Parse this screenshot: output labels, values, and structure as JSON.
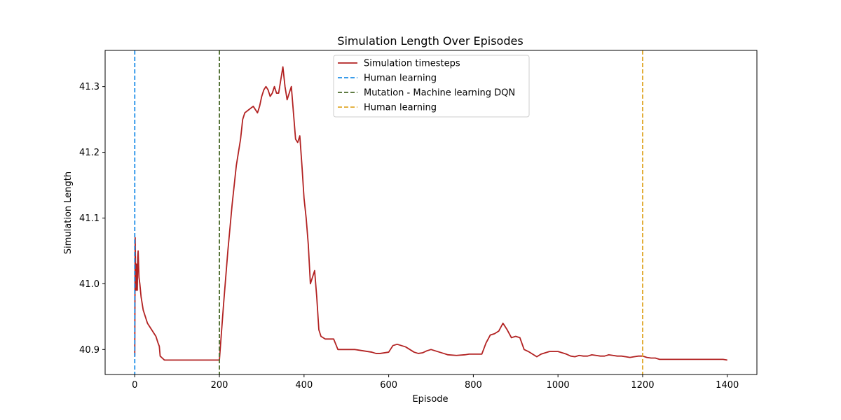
{
  "chart_data": {
    "type": "line",
    "title": "Simulation Length Over Episodes",
    "xlabel": "Episode",
    "ylabel": "Simulation Length",
    "xlim": [
      -70,
      1470
    ],
    "ylim": [
      40.862,
      41.355
    ],
    "x_ticks": [
      0,
      200,
      400,
      600,
      800,
      1000,
      1200,
      1400
    ],
    "y_ticks": [
      40.9,
      41.0,
      41.1,
      41.2,
      41.3
    ],
    "x_tick_labels": [
      "0",
      "200",
      "400",
      "600",
      "800",
      "1000",
      "1200",
      "1400"
    ],
    "y_tick_labels": [
      "40.9",
      "41.0",
      "41.1",
      "41.2",
      "41.3"
    ],
    "grid": false,
    "legend_position": "top-center",
    "series": [
      {
        "name": "Simulation timesteps",
        "color": "#b22222",
        "style": "solid",
        "x": [
          0,
          1,
          2,
          3,
          4,
          5,
          6,
          7,
          8,
          10,
          12,
          15,
          20,
          30,
          40,
          50,
          55,
          58,
          60,
          65,
          70,
          100,
          150,
          200,
          210,
          220,
          230,
          240,
          245,
          250,
          255,
          260,
          270,
          280,
          285,
          290,
          295,
          300,
          305,
          310,
          315,
          320,
          325,
          330,
          335,
          340,
          345,
          350,
          355,
          360,
          365,
          370,
          375,
          380,
          385,
          390,
          395,
          400,
          405,
          410,
          415,
          420,
          425,
          430,
          435,
          440,
          450,
          470,
          480,
          500,
          520,
          540,
          560,
          570,
          580,
          600,
          610,
          620,
          630,
          640,
          650,
          660,
          670,
          680,
          690,
          700,
          710,
          720,
          730,
          740,
          760,
          780,
          790,
          800,
          820,
          830,
          840,
          850,
          860,
          870,
          880,
          890,
          900,
          910,
          920,
          930,
          940,
          950,
          960,
          970,
          980,
          990,
          1000,
          1010,
          1020,
          1030,
          1040,
          1050,
          1060,
          1070,
          1080,
          1090,
          1100,
          1110,
          1120,
          1130,
          1140,
          1150,
          1160,
          1170,
          1180,
          1190,
          1200,
          1210,
          1220,
          1230,
          1240,
          1260,
          1280,
          1300,
          1320,
          1340,
          1360,
          1380,
          1390,
          1400
        ],
        "y": [
          40.89,
          41.07,
          41.0,
          40.99,
          41.03,
          41.02,
          40.99,
          41.04,
          41.05,
          41.01,
          41.0,
          40.98,
          40.96,
          40.94,
          40.93,
          40.92,
          40.91,
          40.905,
          40.89,
          40.887,
          40.884,
          40.884,
          40.884,
          40.884,
          40.97,
          41.05,
          41.12,
          41.18,
          41.2,
          41.22,
          41.25,
          41.26,
          41.265,
          41.27,
          41.265,
          41.26,
          41.27,
          41.285,
          41.295,
          41.3,
          41.295,
          41.285,
          41.29,
          41.3,
          41.29,
          41.29,
          41.31,
          41.33,
          41.3,
          41.28,
          41.29,
          41.3,
          41.26,
          41.22,
          41.215,
          41.225,
          41.18,
          41.13,
          41.1,
          41.06,
          41.0,
          41.01,
          41.02,
          40.98,
          40.93,
          40.92,
          40.916,
          40.916,
          40.9,
          40.9,
          40.9,
          40.898,
          40.896,
          40.894,
          40.894,
          40.896,
          40.906,
          40.908,
          40.906,
          40.904,
          40.9,
          40.896,
          40.894,
          40.895,
          40.898,
          40.9,
          40.898,
          40.896,
          40.894,
          40.892,
          40.891,
          40.892,
          40.893,
          40.893,
          40.893,
          40.91,
          40.922,
          40.924,
          40.928,
          40.94,
          40.93,
          40.918,
          40.92,
          40.918,
          40.9,
          40.897,
          40.893,
          40.889,
          40.893,
          40.895,
          40.897,
          40.897,
          40.897,
          40.895,
          40.893,
          40.89,
          40.889,
          40.891,
          40.89,
          40.89,
          40.892,
          40.891,
          40.89,
          40.89,
          40.892,
          40.891,
          40.89,
          40.89,
          40.889,
          40.888,
          40.889,
          40.89,
          40.89,
          40.888,
          40.887,
          40.887,
          40.885,
          40.885,
          40.885,
          40.885,
          40.885,
          40.885,
          40.885,
          40.885,
          40.885,
          40.884
        ]
      }
    ],
    "vlines": [
      {
        "name": "Human learning",
        "x": 0,
        "color": "#1f8ee8",
        "style": "dashed"
      },
      {
        "name": "Mutation - Machine learning DQN",
        "x": 200,
        "color": "#4a6a2a",
        "style": "dashed"
      },
      {
        "name": "Human learning",
        "x": 1200,
        "color": "#e0a82a",
        "style": "dashed"
      }
    ]
  }
}
